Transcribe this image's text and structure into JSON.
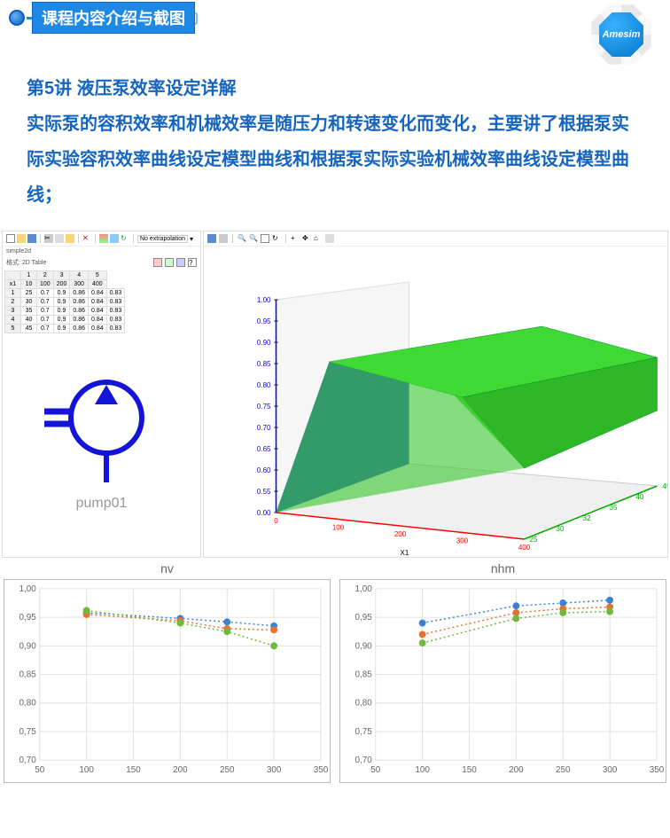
{
  "banner": {
    "title": "课程内容介绍与截图"
  },
  "logo": {
    "text": "Amesim"
  },
  "content": {
    "line1": "第5讲 液压泵效率设定详解",
    "line2": "实际泵的容积效率和机械效率是随压力和转速变化而变化，主要讲了根据泵实际实验容积效率曲线设定模型曲线和根据泵实际实验机械效率曲线设定模型曲线；"
  },
  "left_panel": {
    "extrap_label": "No extrapolation",
    "file_label": "simple2d",
    "format_label": "格式: 2D Table",
    "table": {
      "col_indices": [
        "",
        "1",
        "2",
        "3",
        "4",
        "5"
      ],
      "col_headers": [
        "x1",
        "10",
        "100",
        "200",
        "300",
        "400"
      ],
      "rows": [
        [
          "1",
          "25",
          "0.7",
          "0.9",
          "0.86",
          "0.84",
          "0.83"
        ],
        [
          "2",
          "30",
          "0.7",
          "0.9",
          "0.86",
          "0.84",
          "0.83"
        ],
        [
          "3",
          "35",
          "0.7",
          "0.9",
          "0.86",
          "0.84",
          "0.83"
        ],
        [
          "4",
          "40",
          "0.7",
          "0.9",
          "0.86",
          "0.84",
          "0.83"
        ],
        [
          "5",
          "45",
          "0.7",
          "0.9",
          "0.86",
          "0.84",
          "0.83"
        ]
      ]
    },
    "pump": {
      "label": "pump01",
      "color": "#1414d8"
    }
  },
  "surface_chart": {
    "type": "3d-surface",
    "z_ticks": [
      "0.00",
      "0.55",
      "0.60",
      "0.65",
      "0.70",
      "0.75",
      "0.80",
      "0.85",
      "0.90",
      "0.95",
      "1.00"
    ],
    "x_ticks": [
      "0",
      "100",
      "200",
      "300",
      "400"
    ],
    "x_label": "X1",
    "y_ticks": [
      "25",
      "30",
      "32",
      "35",
      "40",
      "45"
    ],
    "surface_color_main": "#3fd933",
    "surface_color_edge": "#0a8a2e",
    "surface_color_low": "#1040c0",
    "bg_color": "#f0f0f0",
    "axis_colors": {
      "x": "#ff0000",
      "y": "#00aa00",
      "z": "#0000ff"
    }
  },
  "chart_nv": {
    "type": "scatter",
    "title": "nv",
    "xlim": [
      50,
      350
    ],
    "ylim": [
      0.7,
      1.0
    ],
    "x_ticks": [
      50,
      100,
      150,
      200,
      250,
      300,
      350
    ],
    "y_ticks": [
      "0,70",
      "0,75",
      "0,80",
      "0,85",
      "0,90",
      "0,95",
      "1,00"
    ],
    "grid_color": "#e0e0e0",
    "series": [
      {
        "color": "#3b82d6",
        "marker": "circle",
        "points": [
          [
            100,
            0.958
          ],
          [
            200,
            0.948
          ],
          [
            250,
            0.942
          ],
          [
            300,
            0.935
          ]
        ]
      },
      {
        "color": "#e57330",
        "marker": "circle",
        "points": [
          [
            100,
            0.955
          ],
          [
            200,
            0.944
          ],
          [
            250,
            0.93
          ],
          [
            300,
            0.928
          ]
        ]
      },
      {
        "color": "#6fba3c",
        "marker": "circle",
        "points": [
          [
            100,
            0.962
          ],
          [
            200,
            0.94
          ],
          [
            250,
            0.925
          ],
          [
            300,
            0.9
          ]
        ]
      }
    ],
    "line_style": "dotted",
    "tick_fontsize": 10
  },
  "chart_nhm": {
    "type": "scatter",
    "title": "nhm",
    "xlim": [
      50,
      350
    ],
    "ylim": [
      0.7,
      1.0
    ],
    "x_ticks": [
      50,
      100,
      150,
      200,
      250,
      300,
      350
    ],
    "y_ticks": [
      "0,70",
      "0,75",
      "0,80",
      "0,85",
      "0,90",
      "0,95",
      "1,00"
    ],
    "grid_color": "#e0e0e0",
    "series": [
      {
        "color": "#3b82d6",
        "marker": "circle",
        "points": [
          [
            100,
            0.94
          ],
          [
            200,
            0.97
          ],
          [
            250,
            0.975
          ],
          [
            300,
            0.98
          ]
        ]
      },
      {
        "color": "#e57330",
        "marker": "circle",
        "points": [
          [
            100,
            0.92
          ],
          [
            200,
            0.958
          ],
          [
            250,
            0.965
          ],
          [
            300,
            0.968
          ]
        ]
      },
      {
        "color": "#6fba3c",
        "marker": "circle",
        "points": [
          [
            100,
            0.905
          ],
          [
            200,
            0.948
          ],
          [
            250,
            0.958
          ],
          [
            300,
            0.96
          ]
        ]
      }
    ],
    "line_style": "dotted",
    "tick_fontsize": 10
  },
  "colors": {
    "text_blue": "#1565c0",
    "banner_bg": "#1e88e5"
  }
}
